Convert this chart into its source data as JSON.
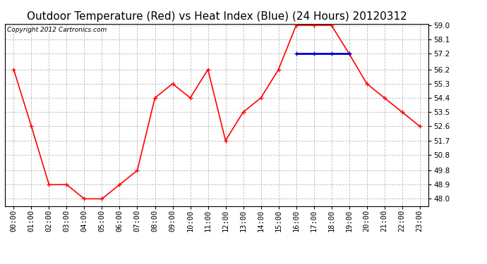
{
  "title": "Outdoor Temperature (Red) vs Heat Index (Blue) (24 Hours) 20120312",
  "copyright": "Copyright 2012 Cartronics.com",
  "hours": [
    "00:00",
    "01:00",
    "02:00",
    "03:00",
    "04:00",
    "05:00",
    "06:00",
    "07:00",
    "08:00",
    "09:00",
    "10:00",
    "11:00",
    "12:00",
    "13:00",
    "14:00",
    "15:00",
    "16:00",
    "17:00",
    "18:00",
    "19:00",
    "20:00",
    "21:00",
    "22:00",
    "23:00"
  ],
  "temp_red": [
    56.2,
    52.6,
    48.9,
    48.9,
    48.0,
    48.0,
    48.9,
    49.8,
    54.4,
    55.3,
    54.4,
    56.2,
    51.7,
    53.5,
    54.4,
    56.2,
    59.0,
    59.0,
    59.0,
    57.2,
    55.3,
    54.4,
    53.5,
    52.6
  ],
  "heat_blue": [
    null,
    null,
    null,
    null,
    null,
    null,
    null,
    null,
    null,
    null,
    null,
    null,
    null,
    null,
    null,
    null,
    57.2,
    57.2,
    57.2,
    57.2,
    null,
    null,
    null,
    null
  ],
  "ylim_min": 48.0,
  "ylim_max": 59.0,
  "yticks": [
    48.0,
    48.9,
    49.8,
    50.8,
    51.7,
    52.6,
    53.5,
    54.4,
    55.3,
    56.2,
    57.2,
    58.1,
    59.0
  ],
  "bg_color": "#ffffff",
  "plot_bg_color": "#ffffff",
  "grid_color": "#bbbbbb",
  "red_color": "#ff0000",
  "blue_color": "#0000cc",
  "title_fontsize": 11,
  "tick_fontsize": 7.5,
  "copyright_fontsize": 6.5
}
